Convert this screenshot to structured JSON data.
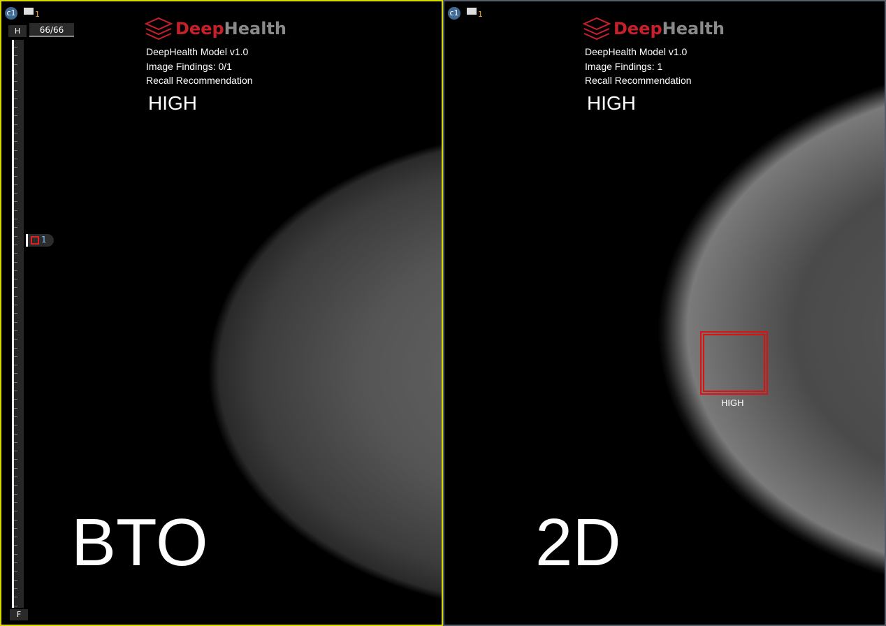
{
  "panels": [
    {
      "viewport_label": "c1",
      "monitor_count": "1",
      "logo": {
        "deep": "Deep",
        "health": "Health"
      },
      "model": "DeepHealth Model v1.0",
      "findings": "Image Findings: 0/1",
      "recall_label": "Recall Recommendation",
      "recall_value": "HIGH",
      "modality": "BTO",
      "slider": {
        "top_label": "H",
        "bottom_label": "F",
        "slice": "66/66",
        "marker_count": "1"
      }
    },
    {
      "viewport_label": "c1",
      "monitor_count": "1",
      "logo": {
        "deep": "Deep",
        "health": "Health"
      },
      "model": "DeepHealth Model v1.0",
      "findings": "Image Findings: 1",
      "recall_label": "Recall Recommendation",
      "recall_value": "HIGH",
      "modality": "2D",
      "finding_label": "HIGH"
    }
  ],
  "colors": {
    "active_border": "#d8d800",
    "inactive_border": "#56606c",
    "finding": "#e01010",
    "brand_red": "#c8202a"
  }
}
